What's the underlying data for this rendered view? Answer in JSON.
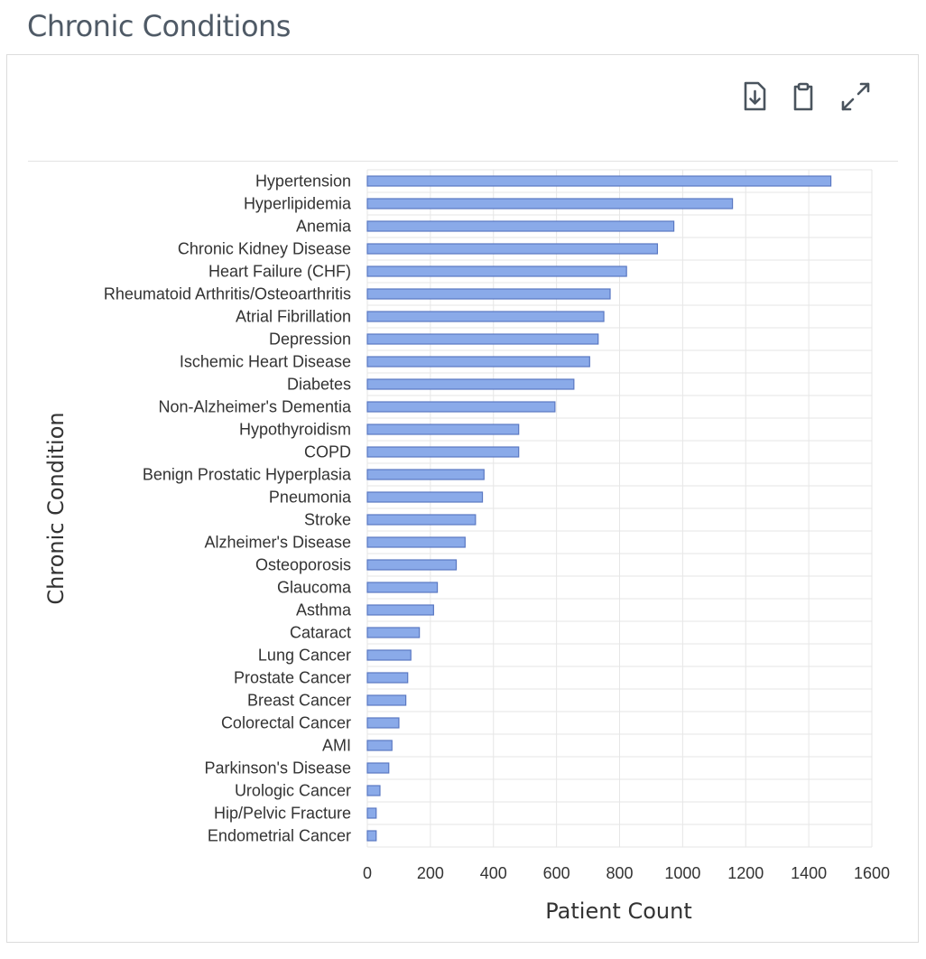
{
  "page": {
    "title": "Chronic Conditions"
  },
  "toolbar": {
    "download_icon": "download-icon",
    "copy_icon": "clipboard-icon",
    "expand_icon": "expand-icon"
  },
  "colors": {
    "bar_fill": "#8aaae9",
    "bar_stroke": "#5a78c2",
    "grid": "#e6e6e6",
    "icon": "#4a545e"
  },
  "chart_data": {
    "type": "bar",
    "orientation": "horizontal",
    "title": "",
    "xlabel": "Patient Count",
    "ylabel": "Chronic Condition",
    "xlim": [
      0,
      1600
    ],
    "xticks": [
      0,
      200,
      400,
      600,
      800,
      1000,
      1200,
      1400,
      1600
    ],
    "grid": true,
    "categories": [
      "Hypertension",
      "Hyperlipidemia",
      "Anemia",
      "Chronic Kidney Disease",
      "Heart Failure (CHF)",
      "Rheumatoid Arthritis/Osteoarthritis",
      "Atrial Fibrillation",
      "Depression",
      "Ischemic Heart Disease",
      "Diabetes",
      "Non-Alzheimer's Dementia",
      "Hypothyroidism",
      "COPD",
      "Benign Prostatic Hyperplasia",
      "Pneumonia",
      "Stroke",
      "Alzheimer's Disease",
      "Osteoporosis",
      "Glaucoma",
      "Asthma",
      "Cataract",
      "Lung Cancer",
      "Prostate Cancer",
      "Breast Cancer",
      "Colorectal Cancer",
      "AMI",
      "Parkinson's Disease",
      "Urologic Cancer",
      "Hip/Pelvic Fracture",
      "Endometrial Cancer"
    ],
    "values": [
      1470,
      1158,
      972,
      920,
      822,
      770,
      750,
      732,
      705,
      655,
      595,
      480,
      480,
      370,
      365,
      343,
      310,
      282,
      222,
      210,
      165,
      138,
      128,
      122,
      100,
      78,
      68,
      40,
      28,
      28
    ]
  }
}
